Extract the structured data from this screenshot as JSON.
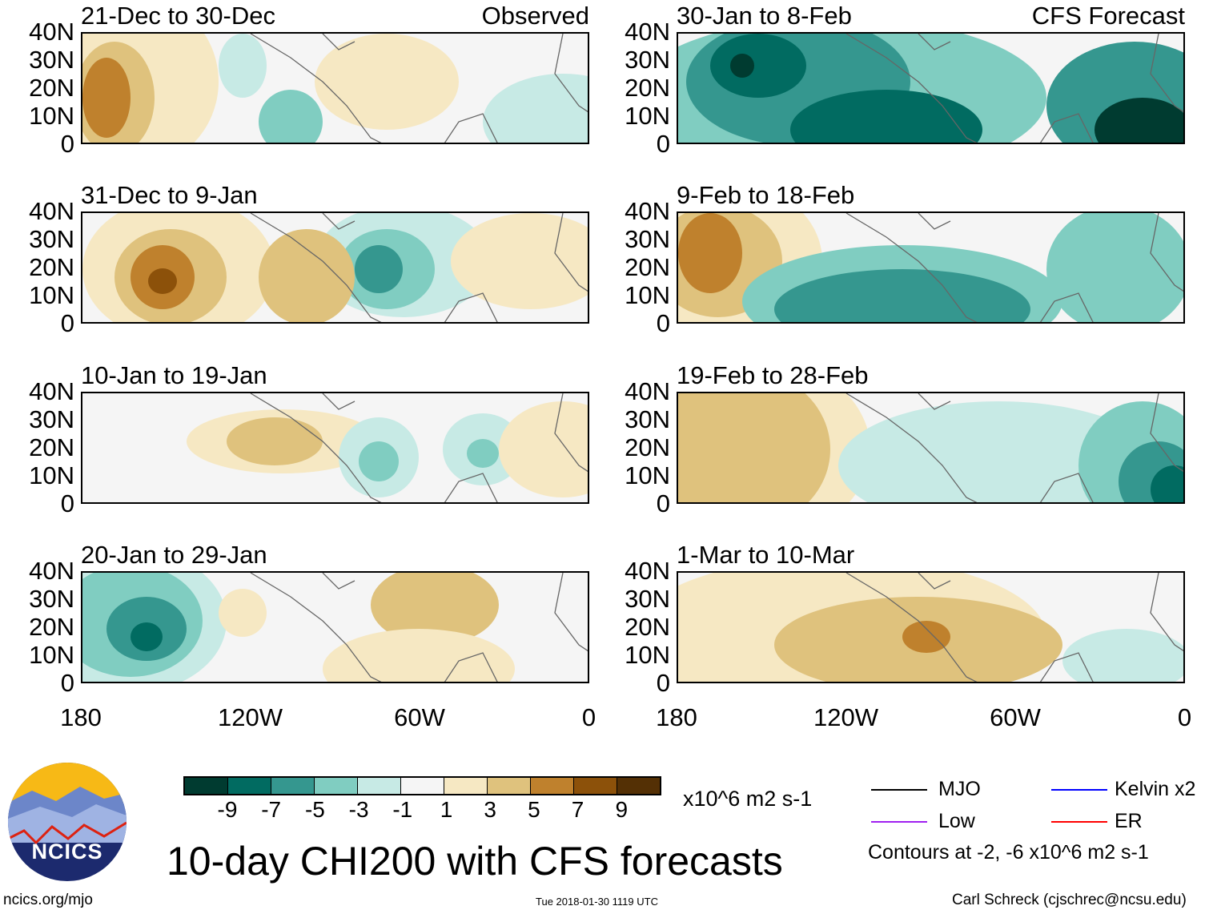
{
  "panels_left": [
    {
      "title": "21-Dec to 30-Dec",
      "tag": "Observed"
    },
    {
      "title": "31-Dec to 9-Jan",
      "tag": ""
    },
    {
      "title": "10-Jan to 19-Jan",
      "tag": ""
    },
    {
      "title": "20-Jan to 29-Jan",
      "tag": ""
    }
  ],
  "panels_right": [
    {
      "title": "30-Jan to 8-Feb",
      "tag": "CFS Forecast"
    },
    {
      "title": "9-Feb to 18-Feb",
      "tag": ""
    },
    {
      "title": "19-Feb to 28-Feb",
      "tag": ""
    },
    {
      "title": "1-Mar to 10-Mar",
      "tag": ""
    }
  ],
  "y_ticks": [
    "40N",
    "30N",
    "20N",
    "10N",
    "0"
  ],
  "x_ticks": [
    "180",
    "120W",
    "60W",
    "0"
  ],
  "colorbar": {
    "colors": [
      "#003b30",
      "#016b61",
      "#35978f",
      "#80cdc1",
      "#c7eae5",
      "#f5f5f5",
      "#f6e8c3",
      "#dfc27d",
      "#bf812d",
      "#8c510a",
      "#543005"
    ],
    "labels": [
      "-9",
      "-7",
      "-5",
      "-3",
      "-1",
      "1",
      "3",
      "5",
      "7",
      "9"
    ],
    "units": "x10^6 m2 s-1"
  },
  "legend": {
    "items": [
      {
        "label": "MJO",
        "color": "#000000"
      },
      {
        "label": "Kelvin x2",
        "color": "#0000ff"
      },
      {
        "label": "Low",
        "color": "#a020f0"
      },
      {
        "label": "ER",
        "color": "#ff0000"
      }
    ],
    "note": "Contours at -2, -6 x10^6 m2 s-1"
  },
  "logo_text": "NCICS",
  "main_title": "10-day CHI200 with CFS forecasts",
  "footer": {
    "url": "ncics.org/mjo",
    "timestamp": "Tue 2018-01-30 1119 UTC",
    "credit": "Carl Schreck (cjschrec@ncsu.edu)"
  }
}
